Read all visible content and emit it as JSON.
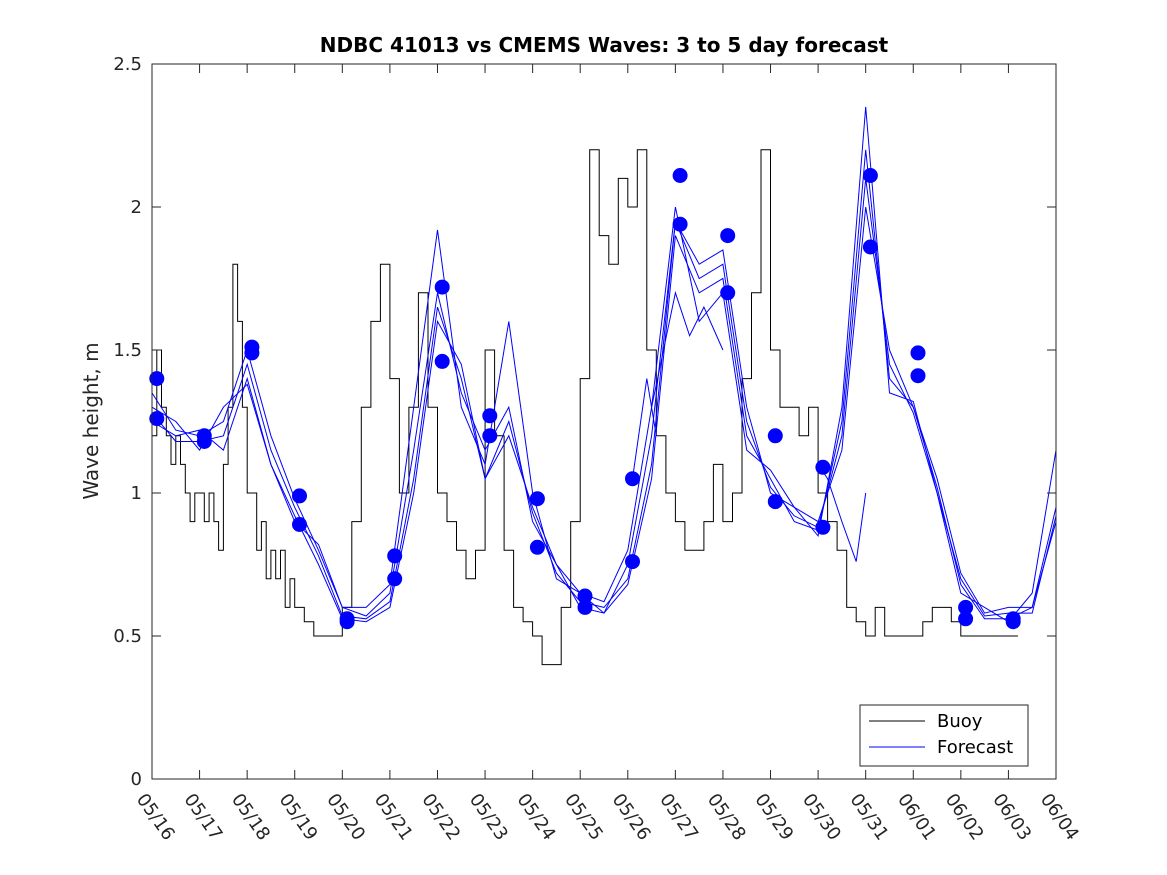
{
  "chart_data": {
    "type": "line",
    "title": "NDBC 41013 vs CMEMS Waves: 3 to 5 day forecast",
    "ylabel": "Wave height, m",
    "xlabel": "",
    "ylim": [
      0,
      2.5
    ],
    "xlim": [
      "05/16",
      "06/04"
    ],
    "yticks": [
      "0",
      "0.5",
      "1",
      "1.5",
      "2",
      "2.5"
    ],
    "xticks": [
      "05/16",
      "05/17",
      "05/18",
      "05/19",
      "05/20",
      "05/21",
      "05/22",
      "05/23",
      "05/24",
      "05/25",
      "05/26",
      "05/27",
      "05/28",
      "05/29",
      "05/30",
      "05/31",
      "06/01",
      "06/02",
      "06/03",
      "06/04"
    ],
    "legend": {
      "position": "bottom-right",
      "entries": [
        "Buoy",
        "Forecast"
      ]
    },
    "colors": {
      "buoy": "#000000",
      "forecast": "#0000ff"
    },
    "buoy": {
      "name": "Buoy",
      "x": [
        0.0,
        0.1,
        0.2,
        0.3,
        0.4,
        0.5,
        0.6,
        0.7,
        0.8,
        0.9,
        1.0,
        1.1,
        1.2,
        1.3,
        1.4,
        1.5,
        1.6,
        1.7,
        1.8,
        1.9,
        2.0,
        2.1,
        2.2,
        2.3,
        2.4,
        2.5,
        2.6,
        2.7,
        2.8,
        2.9,
        3.0,
        3.2,
        3.4,
        3.6,
        3.8,
        4.0,
        4.2,
        4.4,
        4.6,
        4.8,
        5.0,
        5.2,
        5.4,
        5.6,
        5.8,
        6.0,
        6.2,
        6.4,
        6.6,
        6.8,
        7.0,
        7.2,
        7.4,
        7.6,
        7.8,
        8.0,
        8.2,
        8.4,
        8.6,
        8.8,
        9.0,
        9.2,
        9.4,
        9.6,
        9.8,
        10.0,
        10.2,
        10.4,
        10.6,
        10.8,
        11.0,
        11.2,
        11.4,
        11.6,
        11.8,
        12.0,
        12.2,
        12.4,
        12.6,
        12.8,
        13.0,
        13.2,
        13.4,
        13.6,
        13.8,
        14.0,
        14.2,
        14.4,
        14.6,
        14.8,
        15.0,
        15.2,
        15.4,
        15.6,
        15.8,
        16.0,
        16.2,
        16.4,
        16.6,
        16.8,
        17.0,
        17.2,
        17.4,
        17.6,
        17.8,
        18.0,
        18.2
      ],
      "values": [
        1.2,
        1.5,
        1.3,
        1.2,
        1.1,
        1.2,
        1.1,
        1.0,
        0.9,
        1.0,
        1.0,
        0.9,
        1.0,
        0.9,
        0.8,
        1.1,
        1.3,
        1.8,
        1.6,
        1.3,
        1.0,
        1.0,
        0.8,
        0.9,
        0.7,
        0.8,
        0.7,
        0.8,
        0.6,
        0.7,
        0.6,
        0.55,
        0.5,
        0.5,
        0.5,
        0.6,
        0.9,
        1.3,
        1.6,
        1.8,
        1.4,
        1.0,
        1.3,
        1.7,
        1.3,
        1.0,
        0.9,
        0.8,
        0.7,
        0.8,
        1.5,
        1.2,
        0.8,
        0.6,
        0.55,
        0.5,
        0.4,
        0.4,
        0.6,
        0.9,
        1.4,
        2.2,
        1.9,
        1.8,
        2.1,
        2.0,
        2.2,
        1.5,
        1.2,
        1.0,
        0.9,
        0.8,
        0.8,
        0.9,
        1.1,
        0.9,
        1.0,
        1.4,
        1.7,
        2.2,
        1.5,
        1.3,
        1.3,
        1.2,
        1.3,
        1.0,
        0.9,
        0.8,
        0.6,
        0.55,
        0.5,
        0.6,
        0.5,
        0.5,
        0.5,
        0.5,
        0.55,
        0.6,
        0.6,
        0.55,
        0.5,
        0.5,
        0.5,
        0.5,
        0.5,
        0.5,
        0.5
      ]
    },
    "forecast_runs": [
      {
        "x": [
          0.0,
          0.5,
          1.0,
          1.5,
          2.0,
          2.5,
          3.0,
          3.5,
          4.0,
          4.5,
          5.0,
          5.5,
          6.0,
          6.5,
          7.0,
          7.5,
          8.0,
          8.5,
          9.0,
          9.5,
          10.0,
          10.5,
          11.0,
          11.5,
          12.0,
          12.5,
          13.0,
          13.5,
          14.0,
          14.5,
          15.0,
          15.5,
          16.0,
          16.5,
          17.0,
          17.5,
          18.0,
          18.5,
          19.0
        ],
        "values": [
          1.25,
          1.2,
          1.22,
          1.15,
          1.4,
          1.1,
          0.92,
          0.75,
          0.56,
          0.55,
          0.6,
          1.0,
          1.6,
          1.45,
          1.05,
          1.2,
          0.95,
          0.75,
          0.6,
          0.58,
          0.75,
          1.2,
          1.95,
          1.8,
          1.85,
          1.3,
          1.0,
          0.95,
          0.9,
          1.15,
          2.0,
          1.5,
          1.3,
          1.05,
          0.72,
          0.58,
          0.6,
          0.6,
          0.9
        ]
      },
      {
        "x": [
          0.0,
          0.5,
          1.0,
          1.5,
          2.0,
          2.5,
          3.0,
          3.5,
          4.0,
          4.5,
          5.0,
          5.5,
          6.0,
          6.5,
          7.0,
          7.5,
          8.0,
          8.5,
          9.0,
          9.5,
          10.0,
          10.5,
          11.0,
          11.5,
          12.0,
          12.5,
          13.0,
          13.5,
          14.0,
          14.5,
          15.0,
          15.5,
          16.0,
          16.5,
          17.0,
          17.5,
          18.0,
          18.5,
          19.0
        ],
        "values": [
          1.28,
          1.18,
          1.18,
          1.2,
          1.45,
          1.15,
          0.95,
          0.78,
          0.57,
          0.56,
          0.62,
          1.05,
          1.65,
          1.4,
          1.05,
          1.25,
          0.93,
          0.72,
          0.62,
          0.6,
          0.7,
          1.1,
          1.95,
          1.75,
          1.8,
          1.25,
          1.02,
          0.92,
          0.88,
          1.2,
          2.1,
          1.45,
          1.28,
          1.0,
          0.7,
          0.57,
          0.58,
          0.58,
          0.92
        ]
      },
      {
        "x": [
          0.0,
          0.5,
          1.0,
          1.5,
          2.0,
          2.5,
          3.0,
          3.5,
          4.0,
          4.5,
          5.0,
          5.5,
          6.0,
          6.5,
          7.0,
          7.5,
          8.0,
          8.5,
          9.0,
          9.5,
          10.0,
          10.5,
          11.0,
          11.5,
          12.0,
          12.5,
          13.0,
          13.5,
          14.0,
          14.5,
          15.0,
          15.5,
          16.0,
          16.5,
          17.0,
          17.5,
          18.0,
          18.5,
          19.0
        ],
        "values": [
          1.35,
          1.22,
          1.2,
          1.25,
          1.5,
          1.2,
          0.98,
          0.8,
          0.6,
          0.57,
          0.65,
          1.15,
          1.7,
          1.35,
          1.15,
          1.3,
          0.9,
          0.75,
          0.65,
          0.58,
          0.68,
          1.05,
          1.9,
          1.7,
          1.75,
          1.2,
          1.05,
          0.9,
          0.87,
          1.25,
          2.2,
          1.4,
          1.3,
          1.02,
          0.68,
          0.56,
          0.56,
          0.6,
          0.95
        ]
      },
      {
        "x": [
          0.0,
          0.5,
          1.0,
          1.5,
          2.0,
          2.5,
          3.0,
          3.5,
          4.0,
          4.5,
          5.0,
          5.5,
          6.0,
          6.5,
          7.0,
          7.5,
          8.0,
          8.5,
          9.0,
          9.5,
          10.0,
          10.5,
          11.0,
          11.5,
          12.0,
          12.5,
          13.0,
          13.5,
          14.0,
          14.5,
          15.0,
          15.5,
          16.0,
          16.5,
          17.0,
          17.5,
          18.0,
          18.5,
          19.0
        ],
        "values": [
          1.3,
          1.25,
          1.15,
          1.3,
          1.38,
          1.1,
          0.9,
          0.82,
          0.6,
          0.6,
          0.68,
          1.3,
          1.92,
          1.3,
          1.1,
          1.6,
          1.0,
          0.7,
          0.65,
          0.62,
          0.8,
          1.3,
          2.0,
          1.6,
          1.7,
          1.15,
          1.08,
          0.95,
          0.85,
          1.3,
          2.35,
          1.35,
          1.32,
          1.0,
          0.65,
          0.6,
          0.55,
          0.65,
          1.15
        ]
      },
      {
        "x": [
          10.5,
          11.0,
          11.3,
          11.6,
          12.0
        ],
        "values": [
          1.3,
          1.7,
          1.55,
          1.65,
          1.5
        ]
      },
      {
        "x": [
          14.0,
          14.2,
          14.5,
          14.8,
          15.0
        ],
        "values": [
          1.1,
          1.05,
          0.9,
          0.76,
          1.0
        ]
      },
      {
        "x": [
          10.1,
          10.4,
          10.6
        ],
        "values": [
          1.05,
          1.4,
          1.2
        ]
      }
    ],
    "forecast_points": {
      "x": [
        0.1,
        0.1,
        1.1,
        1.1,
        2.1,
        2.1,
        3.1,
        3.1,
        4.1,
        4.1,
        5.1,
        5.1,
        6.1,
        6.1,
        7.1,
        7.1,
        8.1,
        8.1,
        9.1,
        9.1,
        10.1,
        10.1,
        11.1,
        11.1,
        12.1,
        12.1,
        13.1,
        13.1,
        14.1,
        14.1,
        15.1,
        15.1,
        16.1,
        16.1,
        17.1,
        17.1,
        18.1,
        18.1
      ],
      "values": [
        1.4,
        1.26,
        1.2,
        1.18,
        1.51,
        1.49,
        0.99,
        0.89,
        0.56,
        0.55,
        0.78,
        0.7,
        1.72,
        1.46,
        1.27,
        1.2,
        0.98,
        0.81,
        0.64,
        0.6,
        1.05,
        0.76,
        2.11,
        1.94,
        1.9,
        1.7,
        1.2,
        0.97,
        1.09,
        0.88,
        2.11,
        1.86,
        1.49,
        1.41,
        0.6,
        0.56,
        0.56,
        0.55
      ]
    }
  }
}
